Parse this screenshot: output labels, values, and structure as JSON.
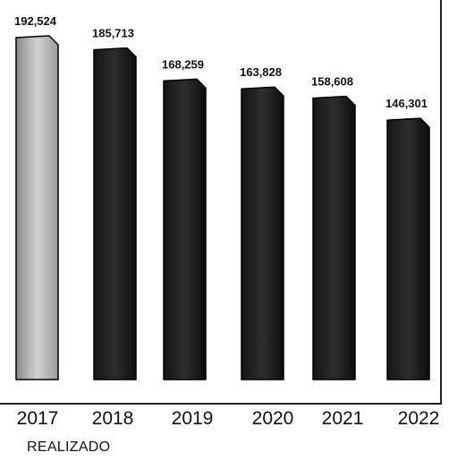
{
  "chart_data": {
    "type": "bar",
    "categories": [
      "2017",
      "2018",
      "2019",
      "2020",
      "2021",
      "2022"
    ],
    "values": [
      192524,
      185713,
      168259,
      163828,
      158608,
      146301
    ],
    "value_labels": [
      "192,524",
      "185,713",
      "168,259",
      "163,828",
      "158,608",
      "146,301"
    ],
    "title": "",
    "xlabel": "REALIZADO",
    "ylabel": "",
    "grid": false,
    "legend": "none",
    "colors": [
      "#b5b5b5",
      "#1c1c1c",
      "#111111",
      "#111111",
      "#111111",
      "#111111"
    ]
  }
}
